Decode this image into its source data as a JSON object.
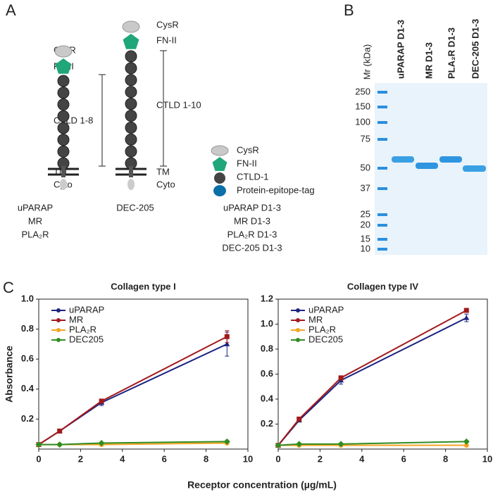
{
  "panel_labels": [
    "A",
    "B",
    "C"
  ],
  "diagram": {
    "uparap": {
      "cysr": "CysR",
      "fn2": "FN-II",
      "ctld": "CTLD 1-8",
      "tm": "TM",
      "cyto": "Cyto",
      "names": [
        "uPARAP",
        "MR",
        "PLA₂R"
      ]
    },
    "dec205": {
      "cysr": "CysR",
      "fn2": "FN-II",
      "ctld": "CTLD 1-10",
      "tm": "TM",
      "cyto": "Cyto",
      "names": [
        "DEC-205"
      ]
    },
    "construct": {
      "cysr": "CysR",
      "fn2": "FN-II",
      "ctld": "CTLD-1",
      "tag": "Protein-epitope-tag",
      "names": [
        "uPARAP D1-3",
        "MR D1-3",
        "PLA₂R D1-3",
        "DEC-205 D1-3"
      ]
    }
  },
  "gel": {
    "axis_label": "Mr (kDa)",
    "lanes": [
      "uPARAP D1-3",
      "MR D1-3",
      "PLA₂R D1-3",
      "DEC-205 D1-3"
    ],
    "markers": [
      "250",
      "150",
      "100",
      "75",
      "50",
      "37",
      "25",
      "20",
      "15",
      "10"
    ]
  },
  "x_label": "Receptor concentration (µg/mL)",
  "chart_data": [
    {
      "type": "line",
      "title": "Collagen type I",
      "y_label": "Absorbance",
      "x": [
        0,
        1,
        3,
        9
      ],
      "xlim": [
        0,
        10
      ],
      "xticks": [
        0,
        2,
        4,
        6,
        8,
        10
      ],
      "ylim": [
        0,
        1
      ],
      "yticks": [
        0.2,
        0.4,
        0.6,
        0.8,
        {
          "value": 1,
          "label": "1.0"
        }
      ],
      "series": [
        {
          "name": "uPARAP",
          "color": "#1c2380",
          "marker": "triangle",
          "values": [
            0.03,
            0.12,
            0.31,
            0.7
          ],
          "errors": [
            0,
            0.01,
            0.02,
            0.08
          ]
        },
        {
          "name": "MR",
          "color": "#a3191c",
          "marker": "square",
          "values": [
            0.03,
            0.12,
            0.32,
            0.75
          ],
          "errors": [
            0,
            0.01,
            0.01,
            0.04
          ]
        },
        {
          "name": "PLA₂R",
          "color": "#f4a424",
          "marker": "circle",
          "values": [
            0.03,
            0.03,
            0.03,
            0.04
          ]
        },
        {
          "name": "DEC205",
          "color": "#2f8c22",
          "marker": "diamond",
          "values": [
            0.03,
            0.03,
            0.04,
            0.05
          ]
        }
      ]
    },
    {
      "type": "line",
      "title": "Collagen type IV",
      "x": [
        0,
        1,
        3,
        9
      ],
      "xlim": [
        0,
        10
      ],
      "xticks": [
        0,
        2,
        4,
        6,
        8,
        10
      ],
      "ylim": [
        0,
        1.2
      ],
      "yticks": [
        0.2,
        0.4,
        0.6,
        0.8,
        {
          "value": 1,
          "label": "1.0"
        },
        1.2
      ],
      "series": [
        {
          "name": "uPARAP",
          "color": "#1c2380",
          "marker": "triangle",
          "values": [
            0.03,
            0.23,
            0.55,
            1.05
          ],
          "errors": [
            0,
            0.01,
            0.03,
            0.03
          ]
        },
        {
          "name": "MR",
          "color": "#a3191c",
          "marker": "square",
          "values": [
            0.03,
            0.24,
            0.57,
            1.11
          ],
          "errors": [
            0,
            0.01,
            0.01,
            0.01
          ]
        },
        {
          "name": "PLA₂R",
          "color": "#f4a424",
          "marker": "circle",
          "values": [
            0.03,
            0.03,
            0.03,
            0.03
          ]
        },
        {
          "name": "DEC205",
          "color": "#2f8c22",
          "marker": "diamond",
          "values": [
            0.03,
            0.04,
            0.04,
            0.06
          ]
        }
      ]
    }
  ]
}
